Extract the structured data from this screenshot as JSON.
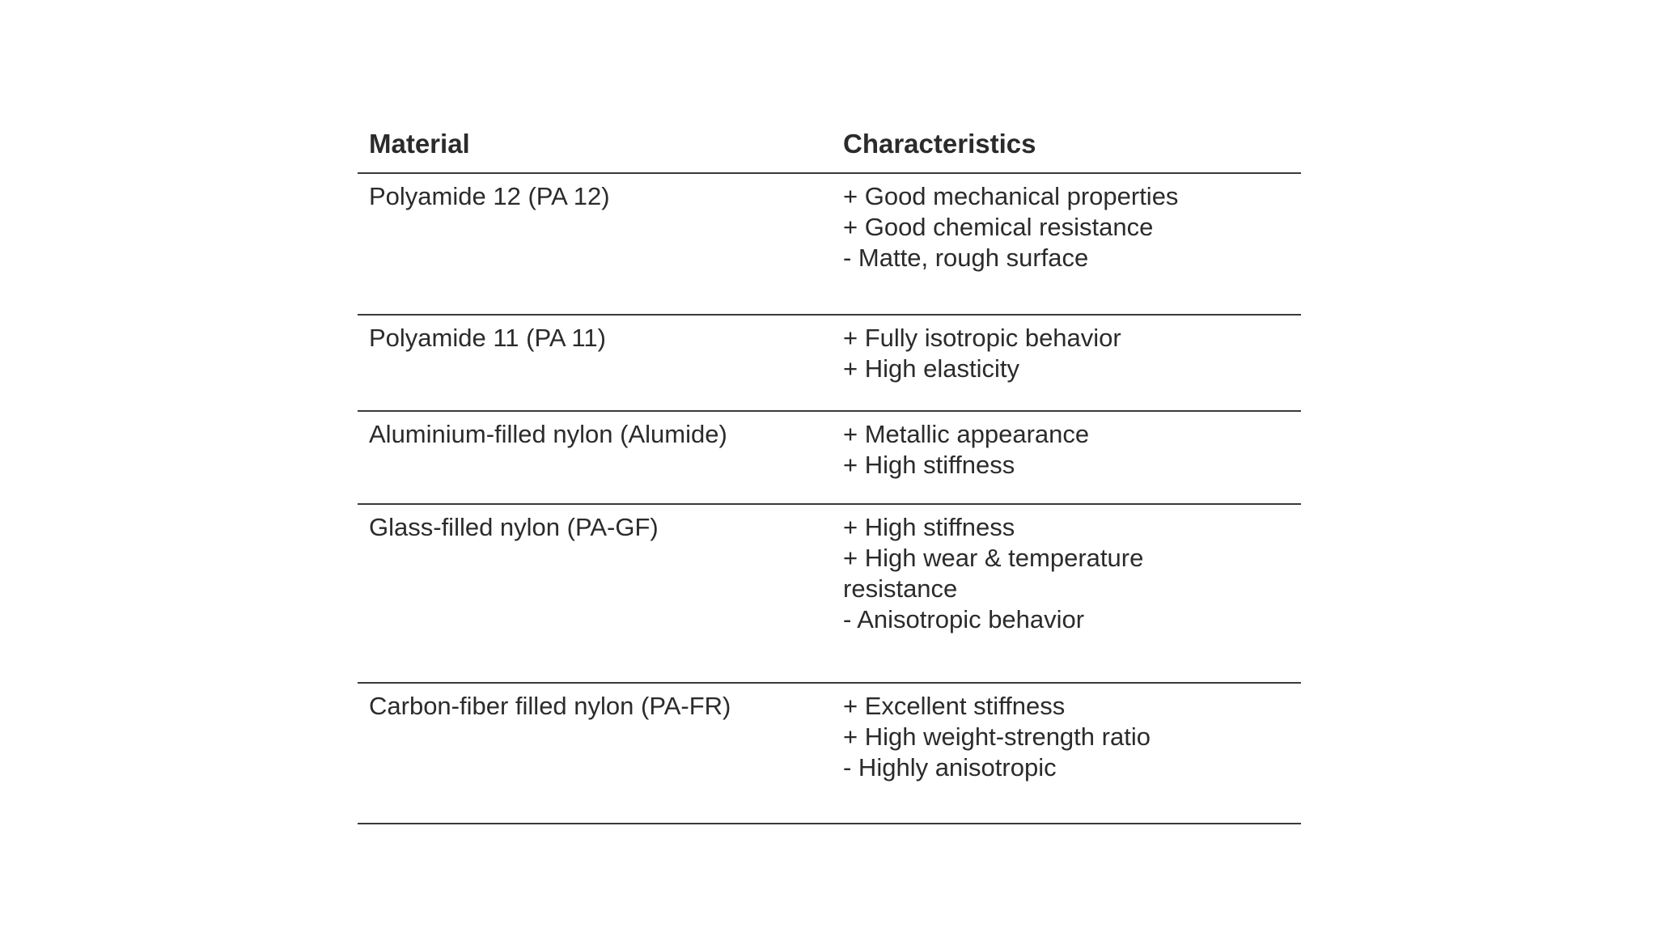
{
  "page": {
    "background": "#ffffff",
    "text_color": "#2b2b2b",
    "rule_color": "#3a3a3a"
  },
  "table": {
    "columns": {
      "material": "Material",
      "characteristics": "Characteristics"
    },
    "rows": [
      {
        "material": "Polyamide 12 (PA 12)",
        "characteristics": [
          "+ Good mechanical properties",
          "+ Good chemical resistance",
          "- Matte, rough surface"
        ]
      },
      {
        "material": "Polyamide 11 (PA 11)",
        "characteristics": [
          "+ Fully isotropic behavior",
          "+ High elasticity"
        ]
      },
      {
        "material": "Aluminium-filled nylon (Alumide)",
        "characteristics": [
          "+ Metallic appearance",
          "+ High stiffness"
        ]
      },
      {
        "material": "Glass-filled nylon (PA-GF)",
        "characteristics": [
          "+ High stiffness",
          "+ High wear & temperature resistance",
          "- Anisotropic behavior"
        ]
      },
      {
        "material": "Carbon-fiber filled nylon (PA-FR)",
        "characteristics": [
          "+ Excellent stiffness",
          "+ High weight-strength ratio",
          "- Highly anisotropic"
        ]
      }
    ]
  }
}
